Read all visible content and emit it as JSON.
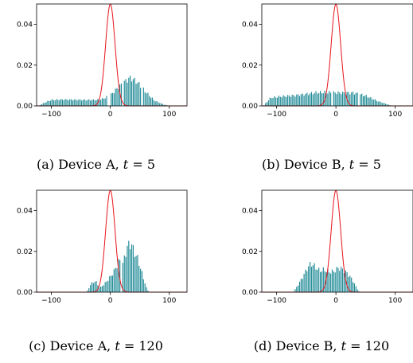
{
  "chart_data": [
    {
      "type": "bar",
      "caption": {
        "prefix": "(a) Device A, ",
        "var": "t",
        "suffix": " = 5"
      },
      "xlim": [
        -125,
        130
      ],
      "ylim": [
        0,
        0.05
      ],
      "xticks": [
        -100,
        0,
        100
      ],
      "xtick_labels": [
        "−100",
        "0",
        "100"
      ],
      "yticks": [
        0,
        0.02,
        0.04
      ],
      "ytick_labels": [
        "0.00",
        "0.02",
        "0.04"
      ],
      "bar_color": "#1f8a96",
      "curve_color": "#e8141b",
      "series": [
        {
          "kind": "histogram",
          "bin_width": 2.5,
          "profile": [
            [
              -122,
              0
            ],
            [
              -118,
              0.0006
            ],
            [
              -110,
              0.0018
            ],
            [
              -100,
              0.0029
            ],
            [
              -80,
              0.0031
            ],
            [
              -60,
              0.003
            ],
            [
              -40,
              0.0029
            ],
            [
              -25,
              0.0029
            ],
            [
              -15,
              0.0032
            ],
            [
              0,
              0.0052
            ],
            [
              15,
              0.0095
            ],
            [
              30,
              0.0132
            ],
            [
              35,
              0.0137
            ],
            [
              45,
              0.0118
            ],
            [
              60,
              0.0068
            ],
            [
              75,
              0.0026
            ],
            [
              90,
              0.0007
            ],
            [
              100,
              0
            ]
          ],
          "gaps": [
            [
              -4,
              -1
            ],
            [
              20,
              22
            ],
            [
              52,
              54
            ]
          ]
        },
        {
          "kind": "normal_pdf",
          "mean": 0,
          "std": 8,
          "x": [
            -125,
            130
          ]
        }
      ]
    },
    {
      "type": "bar",
      "caption": {
        "prefix": "(b) Device B, ",
        "var": "t",
        "suffix": " = 5"
      },
      "xlim": [
        -125,
        130
      ],
      "ylim": [
        0,
        0.05
      ],
      "xticks": [
        -100,
        0,
        100
      ],
      "xtick_labels": [
        "−100",
        "0",
        "100"
      ],
      "yticks": [
        0,
        0.02,
        0.04
      ],
      "ytick_labels": [
        "0.00",
        "0.02",
        "0.04"
      ],
      "bar_color": "#1f8a96",
      "curve_color": "#e8141b",
      "series": [
        {
          "kind": "histogram",
          "bin_width": 2.5,
          "profile": [
            [
              -122,
              0
            ],
            [
              -118,
              0.0015
            ],
            [
              -110,
              0.004
            ],
            [
              -90,
              0.0047
            ],
            [
              -70,
              0.0051
            ],
            [
              -50,
              0.0058
            ],
            [
              -30,
              0.0066
            ],
            [
              -10,
              0.0066
            ],
            [
              10,
              0.0064
            ],
            [
              30,
              0.0064
            ],
            [
              50,
              0.005
            ],
            [
              70,
              0.0024
            ],
            [
              85,
              0.0009
            ],
            [
              95,
              0
            ]
          ],
          "gaps": [
            [
              -8,
              -6
            ],
            [
              38,
              40
            ]
          ]
        },
        {
          "kind": "normal_pdf",
          "mean": 0,
          "std": 8,
          "x": [
            -125,
            130
          ]
        }
      ]
    },
    {
      "type": "bar",
      "caption": {
        "prefix": "(c) Device A, ",
        "var": "t",
        "suffix": " = 120"
      },
      "xlim": [
        -125,
        130
      ],
      "ylim": [
        0,
        0.05
      ],
      "xticks": [
        -100,
        0,
        100
      ],
      "xtick_labels": [
        "−100",
        "0",
        "100"
      ],
      "yticks": [
        0,
        0.02,
        0.04
      ],
      "ytick_labels": [
        "0.00",
        "0.02",
        "0.04"
      ],
      "bar_color": "#1f8a96",
      "curve_color": "#e8141b",
      "series": [
        {
          "kind": "histogram",
          "bin_width": 2.5,
          "profile": [
            [
              -40,
              0
            ],
            [
              -33,
              0.004
            ],
            [
              -25,
              0.0055
            ],
            [
              -18,
              0.002
            ],
            [
              -10,
              0.004
            ],
            [
              0,
              0.0075
            ],
            [
              8,
              0.011
            ],
            [
              15,
              0.016
            ],
            [
              20,
              0.012
            ],
            [
              25,
              0.0185
            ],
            [
              30,
              0.023
            ],
            [
              35,
              0.024
            ],
            [
              40,
              0.02
            ],
            [
              47,
              0.016
            ],
            [
              55,
              0.008
            ],
            [
              62,
              0.0015
            ],
            [
              66,
              0
            ]
          ],
          "gaps": [
            [
              -6,
              -4
            ],
            [
              18,
              19
            ]
          ]
        },
        {
          "kind": "normal_pdf",
          "mean": 0,
          "std": 8,
          "x": [
            -125,
            130
          ]
        }
      ]
    },
    {
      "type": "bar",
      "caption": {
        "prefix": "(d) Device B, ",
        "var": "t",
        "suffix": " = 120"
      },
      "xlim": [
        -125,
        130
      ],
      "ylim": [
        0,
        0.05
      ],
      "xticks": [
        -100,
        0,
        100
      ],
      "xtick_labels": [
        "−100",
        "0",
        "100"
      ],
      "yticks": [
        0,
        0.02,
        0.04
      ],
      "ytick_labels": [
        "0.00",
        "0.02",
        "0.04"
      ],
      "bar_color": "#1f8a96",
      "curve_color": "#e8141b",
      "series": [
        {
          "kind": "histogram",
          "bin_width": 2.5,
          "profile": [
            [
              -72,
              0
            ],
            [
              -65,
              0.003
            ],
            [
              -55,
              0.008
            ],
            [
              -48,
              0.012
            ],
            [
              -42,
              0.014
            ],
            [
              -35,
              0.0125
            ],
            [
              -28,
              0.0105
            ],
            [
              -20,
              0.011
            ],
            [
              -12,
              0.01
            ],
            [
              -5,
              0.01
            ],
            [
              5,
              0.012
            ],
            [
              12,
              0.011
            ],
            [
              20,
              0.009
            ],
            [
              28,
              0.006
            ],
            [
              35,
              0.002
            ],
            [
              40,
              0
            ]
          ],
          "gaps": [
            [
              -30,
              -29
            ],
            [
              2,
              3
            ]
          ]
        },
        {
          "kind": "normal_pdf",
          "mean": 0,
          "std": 8,
          "x": [
            -125,
            130
          ]
        }
      ]
    }
  ]
}
